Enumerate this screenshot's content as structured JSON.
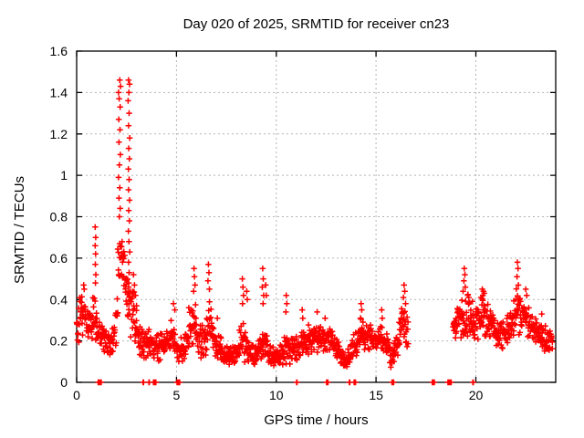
{
  "chart_data": {
    "type": "scatter",
    "title": "Day 020 of 2025, SRMTID for receiver cn23",
    "xlabel": "GPS time / hours",
    "ylabel": "SRMTID / TECUs",
    "xlim": [
      0,
      24
    ],
    "ylim": [
      0,
      1.6
    ],
    "xticks": {
      "values": [
        0,
        5,
        10,
        15,
        20
      ],
      "labels": [
        "0",
        "5",
        "10",
        "15",
        "20"
      ]
    },
    "yticks": {
      "values": [
        0,
        0.2,
        0.4,
        0.6,
        0.8,
        1.0,
        1.2,
        1.4,
        1.6
      ],
      "labels": [
        "0",
        "0.2",
        "0.4",
        "0.6",
        "0.8",
        "1",
        "1.2",
        "1.4",
        "1.6"
      ]
    },
    "grid": {
      "show": true,
      "style": "dashed"
    },
    "legend": "none",
    "marker": {
      "shape": "plus",
      "size": 6.5,
      "stroke_width": 1.5
    },
    "colors": {
      "background": "#ffffff",
      "marker": "#ff0000",
      "grid": "#b4b4b4",
      "border": "#000000",
      "text": "#000000"
    },
    "series": [
      {
        "name": "SRMTID",
        "sample_step_hours": 0.015,
        "x_jitter": 0.012,
        "seed": 2025020,
        "gaps": [
          [
            16.62,
            18.85
          ]
        ],
        "band_keyframes": [
          [
            0.0,
            0.15,
            0.42
          ],
          [
            0.3,
            0.2,
            0.46
          ],
          [
            0.6,
            0.18,
            0.38
          ],
          [
            0.9,
            0.2,
            0.44
          ],
          [
            1.15,
            0.14,
            0.32
          ],
          [
            1.45,
            0.13,
            0.3
          ],
          [
            1.75,
            0.12,
            0.26
          ],
          [
            2.0,
            0.15,
            0.4
          ],
          [
            2.1,
            0.4,
            0.78
          ],
          [
            2.3,
            0.48,
            0.76
          ],
          [
            2.5,
            0.3,
            0.7
          ],
          [
            2.7,
            0.22,
            0.58
          ],
          [
            2.9,
            0.16,
            0.44
          ],
          [
            3.1,
            0.13,
            0.32
          ],
          [
            3.4,
            0.11,
            0.28
          ],
          [
            3.7,
            0.1,
            0.26
          ],
          [
            4.0,
            0.09,
            0.24
          ],
          [
            4.3,
            0.1,
            0.26
          ],
          [
            4.6,
            0.12,
            0.3
          ],
          [
            4.85,
            0.12,
            0.32
          ],
          [
            5.1,
            0.08,
            0.22
          ],
          [
            5.35,
            0.09,
            0.24
          ],
          [
            5.6,
            0.13,
            0.34
          ],
          [
            5.9,
            0.16,
            0.42
          ],
          [
            6.15,
            0.11,
            0.3
          ],
          [
            6.4,
            0.1,
            0.3
          ],
          [
            6.65,
            0.18,
            0.42
          ],
          [
            6.9,
            0.1,
            0.28
          ],
          [
            7.2,
            0.07,
            0.24
          ],
          [
            7.5,
            0.06,
            0.18
          ],
          [
            7.8,
            0.07,
            0.2
          ],
          [
            8.1,
            0.08,
            0.26
          ],
          [
            8.35,
            0.1,
            0.32
          ],
          [
            8.6,
            0.08,
            0.22
          ],
          [
            8.9,
            0.06,
            0.18
          ],
          [
            9.2,
            0.08,
            0.24
          ],
          [
            9.4,
            0.1,
            0.3
          ],
          [
            9.65,
            0.07,
            0.2
          ],
          [
            10.0,
            0.06,
            0.16
          ],
          [
            10.3,
            0.07,
            0.2
          ],
          [
            10.55,
            0.08,
            0.26
          ],
          [
            10.8,
            0.08,
            0.22
          ],
          [
            11.1,
            0.1,
            0.24
          ],
          [
            11.4,
            0.12,
            0.27
          ],
          [
            11.7,
            0.13,
            0.29
          ],
          [
            12.0,
            0.14,
            0.3
          ],
          [
            12.3,
            0.13,
            0.28
          ],
          [
            12.6,
            0.13,
            0.28
          ],
          [
            12.9,
            0.12,
            0.26
          ],
          [
            13.2,
            0.07,
            0.18
          ],
          [
            13.5,
            0.05,
            0.15
          ],
          [
            13.8,
            0.08,
            0.22
          ],
          [
            14.1,
            0.12,
            0.3
          ],
          [
            14.35,
            0.14,
            0.33
          ],
          [
            14.6,
            0.13,
            0.3
          ],
          [
            14.9,
            0.13,
            0.28
          ],
          [
            15.2,
            0.14,
            0.32
          ],
          [
            15.5,
            0.11,
            0.26
          ],
          [
            15.8,
            0.06,
            0.18
          ],
          [
            16.1,
            0.12,
            0.3
          ],
          [
            16.4,
            0.15,
            0.42
          ],
          [
            16.6,
            0.14,
            0.3
          ],
          [
            18.85,
            0.16,
            0.4
          ],
          [
            19.1,
            0.18,
            0.42
          ],
          [
            19.35,
            0.2,
            0.47
          ],
          [
            19.55,
            0.22,
            0.48
          ],
          [
            19.75,
            0.2,
            0.42
          ],
          [
            19.95,
            0.18,
            0.38
          ],
          [
            20.15,
            0.2,
            0.42
          ],
          [
            20.4,
            0.22,
            0.44
          ],
          [
            20.65,
            0.2,
            0.42
          ],
          [
            20.95,
            0.16,
            0.34
          ],
          [
            21.25,
            0.15,
            0.32
          ],
          [
            21.55,
            0.17,
            0.32
          ],
          [
            21.85,
            0.2,
            0.4
          ],
          [
            22.05,
            0.22,
            0.47
          ],
          [
            22.25,
            0.22,
            0.44
          ],
          [
            22.5,
            0.22,
            0.42
          ],
          [
            22.75,
            0.2,
            0.37
          ],
          [
            23.05,
            0.15,
            0.32
          ],
          [
            23.35,
            0.15,
            0.3
          ],
          [
            23.6,
            0.14,
            0.28
          ],
          [
            23.85,
            0.15,
            0.3
          ]
        ],
        "spike_points": [
          [
            0.35,
            0.47
          ],
          [
            0.38,
            0.45
          ],
          [
            0.93,
            0.75
          ],
          [
            0.955,
            0.7
          ],
          [
            0.93,
            0.66
          ],
          [
            0.95,
            0.62
          ],
          [
            0.935,
            0.57
          ],
          [
            0.96,
            0.52
          ],
          [
            0.94,
            0.48
          ],
          [
            2.1,
            1.4
          ],
          [
            2.16,
            1.46
          ],
          [
            2.2,
            1.43
          ],
          [
            2.13,
            1.37
          ],
          [
            2.18,
            1.33
          ],
          [
            2.11,
            1.27
          ],
          [
            2.17,
            1.22
          ],
          [
            2.12,
            1.16
          ],
          [
            2.19,
            1.1
          ],
          [
            2.14,
            1.05
          ],
          [
            2.1,
            0.99
          ],
          [
            2.16,
            0.94
          ],
          [
            2.12,
            0.89
          ],
          [
            2.18,
            0.84
          ],
          [
            2.14,
            0.8
          ],
          [
            2.6,
            1.46
          ],
          [
            2.65,
            1.44
          ],
          [
            2.62,
            1.4
          ],
          [
            2.58,
            1.36
          ],
          [
            2.63,
            1.3
          ],
          [
            2.6,
            1.24
          ],
          [
            2.66,
            1.18
          ],
          [
            2.61,
            1.13
          ],
          [
            2.64,
            1.08
          ],
          [
            2.59,
            1.03
          ],
          [
            2.63,
            0.98
          ],
          [
            2.6,
            0.93
          ],
          [
            2.65,
            0.88
          ],
          [
            2.61,
            0.83
          ],
          [
            2.64,
            0.78
          ],
          [
            2.59,
            0.73
          ],
          [
            2.62,
            0.68
          ],
          [
            2.66,
            0.63
          ],
          [
            2.6,
            0.58
          ],
          [
            2.63,
            0.53
          ],
          [
            2.61,
            0.48
          ],
          [
            2.64,
            0.43
          ],
          [
            2.62,
            0.38
          ],
          [
            2.65,
            0.33
          ],
          [
            2.85,
            0.52
          ],
          [
            2.9,
            0.47
          ],
          [
            2.95,
            0.42
          ],
          [
            3.0,
            0.37
          ],
          [
            4.85,
            0.38
          ],
          [
            4.92,
            0.35
          ],
          [
            5.62,
            0.36
          ],
          [
            5.88,
            0.55
          ],
          [
            5.9,
            0.51
          ],
          [
            5.93,
            0.47
          ],
          [
            5.86,
            0.44
          ],
          [
            6.6,
            0.57
          ],
          [
            6.63,
            0.53
          ],
          [
            6.58,
            0.49
          ],
          [
            6.65,
            0.45
          ],
          [
            7.05,
            0.31
          ],
          [
            8.3,
            0.5
          ],
          [
            8.33,
            0.46
          ],
          [
            8.36,
            0.42
          ],
          [
            8.31,
            0.38
          ],
          [
            8.52,
            0.44
          ],
          [
            8.55,
            0.4
          ],
          [
            9.32,
            0.55
          ],
          [
            9.35,
            0.5
          ],
          [
            9.3,
            0.46
          ],
          [
            9.37,
            0.42
          ],
          [
            9.34,
            0.38
          ],
          [
            9.47,
            0.47
          ],
          [
            9.5,
            0.42
          ],
          [
            10.5,
            0.42
          ],
          [
            10.53,
            0.38
          ],
          [
            10.48,
            0.34
          ],
          [
            11.3,
            0.35
          ],
          [
            11.33,
            0.31
          ],
          [
            12.05,
            0.34
          ],
          [
            12.45,
            0.31
          ],
          [
            14.25,
            0.38
          ],
          [
            14.28,
            0.35
          ],
          [
            14.22,
            0.31
          ],
          [
            15.28,
            0.35
          ],
          [
            15.31,
            0.31
          ],
          [
            16.4,
            0.47
          ],
          [
            16.44,
            0.44
          ],
          [
            16.37,
            0.41
          ],
          [
            16.48,
            0.38
          ],
          [
            19.42,
            0.55
          ],
          [
            19.45,
            0.52
          ],
          [
            19.4,
            0.49
          ],
          [
            19.47,
            0.46
          ],
          [
            19.36,
            0.44
          ],
          [
            20.32,
            0.45
          ],
          [
            20.38,
            0.44
          ],
          [
            20.35,
            0.42
          ],
          [
            20.42,
            0.43
          ],
          [
            22.08,
            0.58
          ],
          [
            22.11,
            0.55
          ],
          [
            22.06,
            0.51
          ],
          [
            22.13,
            0.47
          ],
          [
            22.5,
            0.45
          ],
          [
            22.55,
            0.42
          ],
          [
            23.3,
            0.33
          ]
        ],
        "zero_points": [
          1.08,
          1.12,
          1.21,
          3.33,
          3.62,
          3.85,
          3.9,
          3.95,
          5.03,
          5.08,
          5.14,
          11.02,
          12.52,
          12.57,
          13.66,
          13.9,
          13.95,
          15.8,
          15.86,
          17.82,
          17.9,
          18.6,
          18.66,
          18.74,
          19.85
        ]
      }
    ]
  }
}
